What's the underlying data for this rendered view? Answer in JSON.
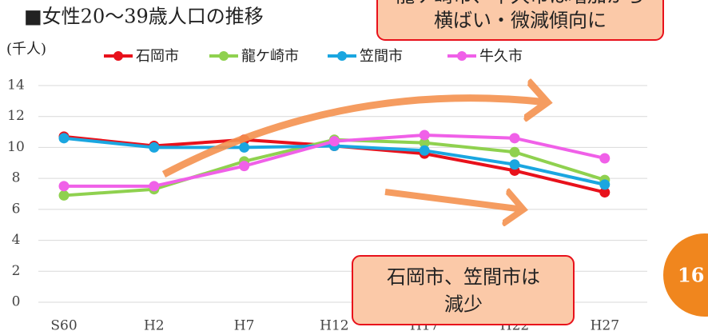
{
  "chart_data": {
    "type": "line",
    "title": "■女性20～39歳人口の推移",
    "y_label": "(千人)",
    "categories": [
      "S60",
      "H2",
      "H7",
      "H12",
      "H17",
      "H22",
      "H27"
    ],
    "series": [
      {
        "name": "石岡市",
        "color": "#e8111b",
        "values": [
          10.7,
          10.1,
          10.5,
          10.1,
          9.6,
          8.5,
          7.1
        ]
      },
      {
        "name": "龍ケ崎市",
        "color": "#8fd14f",
        "values": [
          6.9,
          7.3,
          9.1,
          10.5,
          10.3,
          9.7,
          7.9
        ]
      },
      {
        "name": "笠間市",
        "color": "#1aa6e0",
        "values": [
          10.6,
          10.0,
          10.0,
          10.1,
          9.8,
          8.9,
          7.6
        ]
      },
      {
        "name": "牛久市",
        "color": "#f060e8",
        "values": [
          7.5,
          7.5,
          8.8,
          10.4,
          10.8,
          10.6,
          9.3
        ]
      }
    ],
    "ylim": [
      0,
      14
    ],
    "yticks": [
      0,
      2,
      4,
      6,
      8,
      10,
      12,
      14
    ],
    "grid": true,
    "annotations": [
      {
        "lines": [
          "龍ケ崎市、牛久市は増加から",
          "横ばい・微減傾向に"
        ]
      },
      {
        "lines": [
          "石岡市、笠間市は",
          "減少"
        ]
      }
    ],
    "page_number": "16"
  }
}
